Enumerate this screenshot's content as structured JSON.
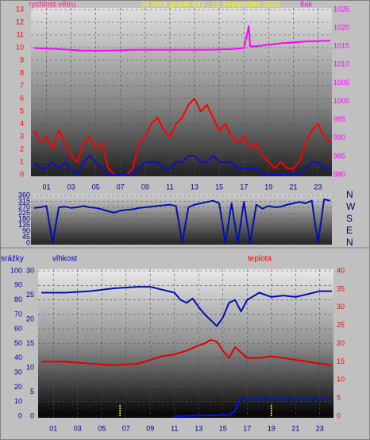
{
  "chart_data": [
    {
      "type": "line",
      "title": "24 hour graph day , 11 September 2022",
      "title_color": "#ffff00",
      "ylabel": "rychlost větru",
      "ylabel_color": "#ff2090",
      "y2label": "tlak",
      "y2label_color": "#ff00ff",
      "xlim": [
        0,
        24
      ],
      "xticks": [
        {
          "value": 1,
          "label": "01"
        },
        {
          "value": 3,
          "label": "03"
        },
        {
          "value": 5,
          "label": "05"
        },
        {
          "value": 7,
          "label": "07"
        },
        {
          "value": 9,
          "label": "09"
        },
        {
          "value": 11,
          "label": "11"
        },
        {
          "value": 13,
          "label": "13"
        },
        {
          "value": 15,
          "label": "15"
        },
        {
          "value": 17,
          "label": "17"
        },
        {
          "value": 19,
          "label": "19"
        },
        {
          "value": 21,
          "label": "21"
        },
        {
          "value": 23,
          "label": "23"
        }
      ],
      "ylim": [
        0,
        13
      ],
      "yticks": [
        0,
        1,
        2,
        3,
        4,
        5,
        6,
        7,
        8,
        9,
        10,
        11,
        12,
        13
      ],
      "ytick_color": "#ff0000",
      "y2lim": [
        980,
        1025
      ],
      "y2ticks": [
        980,
        985,
        990,
        995,
        1000,
        1005,
        1010,
        1015,
        1020,
        1025
      ],
      "y2tick_color": "#ff00ff",
      "grid": true,
      "series": [
        {
          "color": "#ff0000",
          "x": [
            0,
            0.5,
            1,
            1.5,
            2,
            2.5,
            3,
            3.5,
            4,
            4.5,
            5,
            5.5,
            6,
            6.5,
            7,
            7.5,
            8,
            8.5,
            9,
            9.5,
            10,
            10.5,
            11,
            11.5,
            12,
            12.5,
            13,
            13.5,
            14,
            14.5,
            15,
            15.5,
            16,
            16.5,
            17,
            17.5,
            18,
            18.5,
            19,
            19.5,
            20,
            20.5,
            21,
            21.5,
            22,
            22.5,
            23,
            23.5,
            24
          ],
          "values": [
            3.5,
            2.5,
            3,
            2,
            3.5,
            2.5,
            1.5,
            1,
            2.5,
            3,
            2,
            2.5,
            0.5,
            0,
            0,
            0,
            0.5,
            2.5,
            3,
            4,
            4.5,
            3.5,
            3,
            4,
            4.5,
            5.5,
            6,
            5,
            5.5,
            4.5,
            3.5,
            4,
            3,
            2.5,
            3,
            2,
            2.5,
            1.5,
            1,
            0.5,
            1,
            0.5,
            0.5,
            1,
            2.5,
            3.5,
            4,
            3,
            2.5
          ]
        },
        {
          "color": "#1010c0",
          "x": [
            0,
            0.5,
            1,
            1.5,
            2,
            2.5,
            3,
            3.5,
            4,
            4.5,
            5,
            5.5,
            6,
            6.5,
            7,
            7.5,
            8,
            8.5,
            9,
            9.5,
            10,
            10.5,
            11,
            11.5,
            12,
            12.5,
            13,
            13.5,
            14,
            14.5,
            15,
            15.5,
            16,
            16.5,
            17,
            17.5,
            18,
            18.5,
            19,
            19.5,
            20,
            20.5,
            21,
            21.5,
            22,
            22.5,
            23,
            23.5,
            24
          ],
          "values": [
            1,
            0.5,
            0.5,
            1,
            0.5,
            1,
            0.5,
            0,
            1,
            1.5,
            1,
            0.5,
            0,
            0,
            0,
            0,
            0,
            0.5,
            1,
            1,
            1,
            0.5,
            0.5,
            1,
            1,
            1.5,
            1.5,
            1,
            1,
            1.5,
            1,
            1,
            1,
            0.5,
            0.5,
            0.5,
            0.5,
            0,
            0,
            0,
            0,
            0,
            0,
            0,
            0.5,
            1,
            1,
            0.5,
            0.5
          ]
        },
        {
          "color": "#ff00ff",
          "axis": "y2",
          "x": [
            0,
            2,
            4,
            6,
            8,
            10,
            12,
            14,
            16,
            17,
            17.4,
            17.5,
            18,
            20,
            22,
            24
          ],
          "values": [
            1014.5,
            1014.2,
            1013.8,
            1013.8,
            1014,
            1014,
            1014,
            1014,
            1014.2,
            1014.5,
            1020.5,
            1015,
            1015,
            1015.8,
            1016.3,
            1016.5
          ]
        }
      ]
    },
    {
      "type": "line",
      "xlim": [
        0,
        24
      ],
      "ylim": [
        0,
        360
      ],
      "yticks": [
        0,
        45,
        90,
        135,
        180,
        225,
        270,
        315,
        360
      ],
      "ytick_color": "#000080",
      "y2lim": [
        0,
        360
      ],
      "y2ticks": [
        {
          "value": 0,
          "label": "N"
        },
        {
          "value": 90,
          "label": "E"
        },
        {
          "value": 180,
          "label": "S"
        },
        {
          "value": 270,
          "label": "W"
        },
        {
          "value": 360,
          "label": "N"
        }
      ],
      "y2tick_color": "#000080",
      "grid": true,
      "series": [
        {
          "color": "#0010b0",
          "x": [
            0,
            0.5,
            1,
            1.5,
            2,
            2.5,
            3,
            3.5,
            4,
            4.5,
            5,
            5.5,
            6,
            6.5,
            7,
            7.5,
            8,
            8.5,
            9,
            9.5,
            10,
            10.5,
            11,
            11.5,
            12,
            12.5,
            13,
            13.5,
            14,
            14.5,
            15,
            15.5,
            16,
            16.5,
            17,
            17.5,
            18,
            18.5,
            19,
            19.5,
            20,
            20.5,
            21,
            21.5,
            22,
            22.5,
            23,
            23.5,
            24
          ],
          "values": [
            265,
            270,
            280,
            0,
            270,
            275,
            265,
            270,
            280,
            270,
            265,
            255,
            240,
            230,
            245,
            250,
            255,
            265,
            270,
            275,
            280,
            285,
            290,
            280,
            0,
            270,
            290,
            300,
            310,
            320,
            300,
            0,
            300,
            0,
            310,
            0,
            290,
            260,
            280,
            270,
            275,
            290,
            300,
            310,
            300,
            320,
            0,
            330,
            320
          ]
        }
      ]
    },
    {
      "type": "line",
      "ylabel": "vlhkost",
      "ylabel_color": "#0000c0",
      "y3label": "srážky",
      "y3label_color": "#0000c0",
      "y2label": "teplota",
      "y2label_color": "#ff0000",
      "xlim": [
        0,
        24
      ],
      "xticks": [
        {
          "value": 1,
          "label": "01"
        },
        {
          "value": 3,
          "label": "03"
        },
        {
          "value": 5,
          "label": "05"
        },
        {
          "value": 7,
          "label": "07"
        },
        {
          "value": 9,
          "label": "09"
        },
        {
          "value": 11,
          "label": "11"
        },
        {
          "value": 13,
          "label": "13"
        },
        {
          "value": 15,
          "label": "15"
        },
        {
          "value": 17,
          "label": "17"
        },
        {
          "value": 19,
          "label": "19"
        },
        {
          "value": 21,
          "label": "21"
        },
        {
          "value": 23,
          "label": "23"
        }
      ],
      "ylim": [
        0,
        100
      ],
      "yticks": [
        0,
        10,
        20,
        30,
        40,
        50,
        60,
        70,
        80,
        90,
        100
      ],
      "ytick_color": "#0000c0",
      "y3lim": [
        0,
        30
      ],
      "y3ticks": [
        0,
        5,
        10,
        15,
        20,
        25,
        30
      ],
      "y3tick_color": "#000080",
      "y2lim": [
        0,
        40
      ],
      "y2ticks": [
        0,
        5,
        10,
        15,
        20,
        25,
        30,
        35,
        40
      ],
      "y2tick_color": "#ff0000",
      "grid": true,
      "series": [
        {
          "color": "#0010b0",
          "x": [
            0,
            2,
            4,
            6,
            8,
            9,
            10,
            11,
            11.5,
            12,
            12.5,
            13,
            13.5,
            14,
            14.5,
            15,
            15.5,
            16,
            16.5,
            17,
            18,
            19,
            20,
            21,
            22,
            23,
            24
          ],
          "values": [
            85,
            85,
            86,
            88,
            89,
            89,
            87,
            85,
            80,
            78,
            81,
            75,
            70,
            66,
            62,
            68,
            78,
            80,
            72,
            80,
            85,
            82,
            83,
            82,
            84,
            86,
            86
          ]
        },
        {
          "color": "#e00000",
          "axis": "y2",
          "x": [
            0,
            2,
            4,
            6,
            8,
            10,
            11,
            12,
            13,
            13.5,
            14,
            14.5,
            15,
            15.5,
            16,
            16.5,
            17,
            18,
            19,
            20,
            21,
            22,
            23,
            24
          ],
          "values": [
            15,
            15,
            14.5,
            14,
            14.5,
            16.5,
            17,
            18,
            19.5,
            20,
            21,
            20.5,
            18,
            16,
            19,
            17.5,
            16,
            16,
            16.5,
            16,
            15.5,
            15,
            14.5,
            14
          ]
        },
        {
          "color": "#0010ff",
          "axis": "y3",
          "x": [
            11,
            15.5,
            16,
            16.3,
            24
          ],
          "values": [
            0,
            0.3,
            1,
            3.5,
            3.5
          ]
        },
        {
          "color": "#ffff00",
          "axis": "y3",
          "mark": "bar",
          "x": [
            6.5,
            19
          ],
          "values": [
            2.3,
            2.3
          ]
        }
      ]
    }
  ]
}
